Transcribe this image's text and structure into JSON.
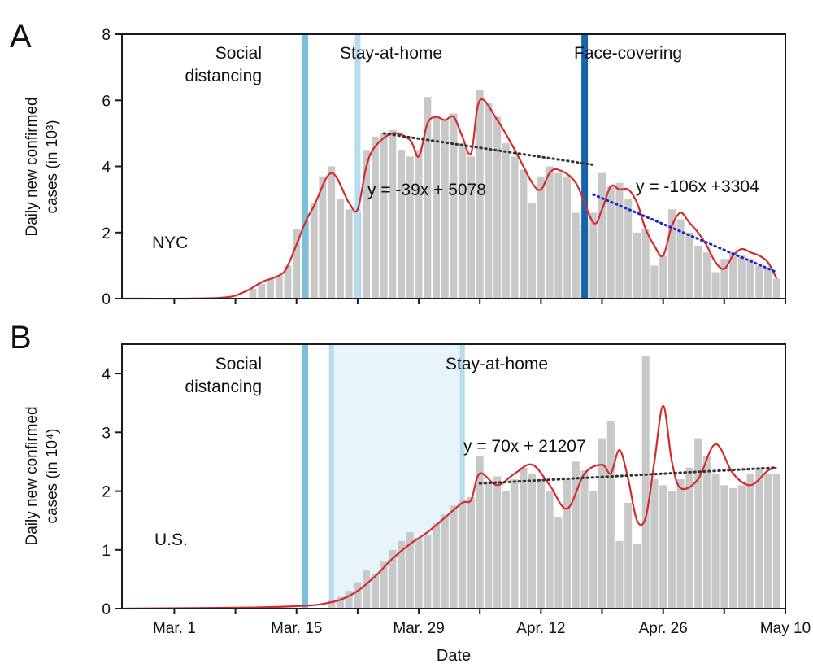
{
  "chart_data": [
    {
      "type": "bar",
      "panel_label": "A",
      "region_label": "NYC",
      "ylabel_line1": "Daily new confirmed",
      "ylabel_line2": "cases (in 10³)",
      "ylim": [
        0,
        8
      ],
      "yticks": [
        0,
        2,
        4,
        6,
        8
      ],
      "x_range": [
        "Feb 24",
        "May 10"
      ],
      "day_start": "Feb 24",
      "categories": [
        "Mar 10",
        "Mar 11",
        "Mar 12",
        "Mar 13",
        "Mar 14",
        "Mar 15",
        "Mar 16",
        "Mar 17",
        "Mar 18",
        "Mar 19",
        "Mar 20",
        "Mar 21",
        "Mar 22",
        "Mar 23",
        "Mar 24",
        "Mar 25",
        "Mar 26",
        "Mar 27",
        "Mar 28",
        "Mar 29",
        "Mar 30",
        "Mar 31",
        "Apr 1",
        "Apr 2",
        "Apr 3",
        "Apr 4",
        "Apr 5",
        "Apr 6",
        "Apr 7",
        "Apr 8",
        "Apr 9",
        "Apr 10",
        "Apr 11",
        "Apr 12",
        "Apr 13",
        "Apr 14",
        "Apr 15",
        "Apr 16",
        "Apr 17",
        "Apr 18",
        "Apr 19",
        "Apr 20",
        "Apr 21",
        "Apr 22",
        "Apr 23",
        "Apr 24",
        "Apr 25",
        "Apr 26",
        "Apr 27",
        "Apr 28",
        "Apr 29",
        "Apr 30",
        "May 1",
        "May 2",
        "May 3",
        "May 4",
        "May 5",
        "May 6",
        "May 7",
        "May 8",
        "May 9"
      ],
      "values": [
        0.3,
        0.45,
        0.6,
        0.7,
        1.0,
        2.1,
        2.4,
        2.9,
        3.7,
        4.0,
        3.0,
        2.7,
        2.6,
        4.5,
        4.9,
        5.0,
        5.1,
        4.5,
        4.3,
        4.5,
        6.1,
        5.5,
        5.4,
        5.6,
        4.7,
        4.3,
        6.3,
        5.9,
        5.5,
        4.7,
        4.3,
        3.9,
        2.9,
        3.7,
        4.0,
        3.8,
        3.7,
        2.6,
        2.2,
        2.6,
        3.8,
        3.4,
        3.5,
        3.0,
        2.0,
        2.1,
        1.0,
        1.3,
        2.7,
        2.4,
        2.0,
        1.6,
        1.4,
        0.8,
        1.2,
        1.4,
        1.3,
        1.2,
        1.0,
        0.9,
        0.6
      ],
      "smoothed": {
        "x": [
          "Feb 24",
          "Mar 6",
          "Mar 9",
          "Mar 11",
          "Mar 13",
          "Mar 14",
          "Mar 16",
          "Mar 17",
          "Mar 19",
          "Mar 21",
          "Mar 22",
          "Mar 23",
          "Mar 24",
          "Mar 26",
          "Mar 28",
          "Mar 29",
          "Mar 30",
          "Mar 31",
          "Apr 1",
          "Apr 2",
          "Apr 3",
          "Apr 4",
          "Apr 5",
          "Apr 7",
          "Apr 9",
          "Apr 11",
          "Apr 12",
          "Apr 13",
          "Apr 14",
          "Apr 16",
          "Apr 18",
          "Apr 19",
          "Apr 20",
          "Apr 21",
          "Apr 22",
          "Apr 23",
          "Apr 24",
          "Apr 25",
          "Apr 26",
          "Apr 27",
          "Apr 28",
          "Apr 29",
          "Apr 30",
          "May 1",
          "May 2",
          "May 3",
          "May 4",
          "May 5",
          "May 6",
          "May 7",
          "May 8",
          "May 9"
        ],
        "y": [
          0,
          0.02,
          0.2,
          0.5,
          0.7,
          1.0,
          2.3,
          2.8,
          3.8,
          2.9,
          2.7,
          4.0,
          4.6,
          5.0,
          4.8,
          4.3,
          5.3,
          5.5,
          5.4,
          5.5,
          4.9,
          4.4,
          6.0,
          5.4,
          4.5,
          3.5,
          3.3,
          3.8,
          3.9,
          3.5,
          2.3,
          2.7,
          3.4,
          3.3,
          3.3,
          2.9,
          2.1,
          1.6,
          1.3,
          2.2,
          2.6,
          2.3,
          2.0,
          1.6,
          1.1,
          0.9,
          1.3,
          1.5,
          1.4,
          1.3,
          1.1,
          0.6
        ]
      },
      "trends": [
        {
          "equation": "y = -39x + 5078",
          "x_range": [
            "Mar 25",
            "Apr 18"
          ],
          "y_range": [
            5.0,
            4.05
          ],
          "color": "#333333"
        },
        {
          "equation": "y = -106x +3304",
          "x_range": [
            "Apr 18",
            "May 9"
          ],
          "y_range": [
            3.15,
            0.8
          ],
          "color": "#2222cc"
        }
      ],
      "interventions": [
        {
          "label_lines": [
            "Social",
            "distancing"
          ],
          "date": "Mar 16",
          "color": "#7bbfdf"
        },
        {
          "label_lines": [
            "Stay-at-home"
          ],
          "date": "Mar 22",
          "color": "#b8dcef"
        },
        {
          "label_lines": [
            "Face-covering"
          ],
          "date": "Apr 17",
          "color": "#1565ad"
        }
      ]
    },
    {
      "type": "bar",
      "panel_label": "B",
      "region_label": "U.S.",
      "ylabel_line1": "Daily new confirmed",
      "ylabel_line2": "cases (in 10⁴)",
      "ylim": [
        0,
        4.5
      ],
      "yticks": [
        0,
        1,
        2,
        3,
        4
      ],
      "x_range": [
        "Feb 24",
        "May 10"
      ],
      "xlabel": "Date",
      "xticks": [
        {
          "date": "Mar 1",
          "label": "Mar. 1"
        },
        {
          "date": "Mar 15",
          "label": "Mar. 15"
        },
        {
          "date": "Mar 29",
          "label": "Mar. 29"
        },
        {
          "date": "Apr 12",
          "label": "Apr. 12"
        },
        {
          "date": "Apr 26",
          "label": "Apr. 26"
        },
        {
          "date": "May 10",
          "label": "May 10"
        }
      ],
      "categories": [
        "Mar 19",
        "Mar 20",
        "Mar 21",
        "Mar 22",
        "Mar 23",
        "Mar 24",
        "Mar 25",
        "Mar 26",
        "Mar 27",
        "Mar 28",
        "Mar 29",
        "Mar 30",
        "Mar 31",
        "Apr 1",
        "Apr 2",
        "Apr 3",
        "Apr 4",
        "Apr 5",
        "Apr 6",
        "Apr 7",
        "Apr 8",
        "Apr 9",
        "Apr 10",
        "Apr 11",
        "Apr 12",
        "Apr 13",
        "Apr 14",
        "Apr 15",
        "Apr 16",
        "Apr 17",
        "Apr 18",
        "Apr 19",
        "Apr 20",
        "Apr 21",
        "Apr 22",
        "Apr 23",
        "Apr 24",
        "Apr 25",
        "Apr 26",
        "Apr 27",
        "Apr 28",
        "Apr 29",
        "Apr 30",
        "May 1",
        "May 2",
        "May 3",
        "May 4",
        "May 5",
        "May 6",
        "May 7",
        "May 8",
        "May 9"
      ],
      "values": [
        0.15,
        0.2,
        0.3,
        0.45,
        0.65,
        0.6,
        0.8,
        1.0,
        1.15,
        1.3,
        1.2,
        1.25,
        1.45,
        1.6,
        1.75,
        1.85,
        1.9,
        2.6,
        2.15,
        2.25,
        2.0,
        2.2,
        2.4,
        2.3,
        2.2,
        2.0,
        1.55,
        2.2,
        2.5,
        2.35,
        2.0,
        2.9,
        3.2,
        1.15,
        1.8,
        1.1,
        4.3,
        2.2,
        2.1,
        2.0,
        2.2,
        2.4,
        2.9,
        2.6,
        2.3,
        2.1,
        2.05,
        2.1,
        2.3,
        2.4,
        2.3,
        2.3
      ],
      "smoothed": {
        "x": [
          "Feb 24",
          "Mar 10",
          "Mar 16",
          "Mar 18",
          "Mar 20",
          "Mar 22",
          "Mar 24",
          "Mar 26",
          "Mar 28",
          "Mar 30",
          "Apr 1",
          "Apr 3",
          "Apr 4",
          "Apr 5",
          "Apr 7",
          "Apr 9",
          "Apr 11",
          "Apr 13",
          "Apr 15",
          "Apr 17",
          "Apr 19",
          "Apr 20",
          "Apr 21",
          "Apr 22",
          "Apr 23",
          "Apr 24",
          "Apr 25",
          "Apr 26",
          "Apr 27",
          "Apr 28",
          "Apr 30",
          "May 2",
          "May 4",
          "May 6",
          "May 8",
          "May 9"
        ],
        "y": [
          0,
          0.02,
          0.05,
          0.08,
          0.15,
          0.3,
          0.55,
          0.85,
          1.1,
          1.3,
          1.55,
          1.8,
          1.85,
          2.3,
          2.1,
          2.3,
          2.45,
          2.1,
          1.7,
          2.3,
          2.45,
          2.3,
          2.7,
          2.2,
          1.5,
          1.55,
          2.5,
          3.45,
          2.5,
          2.05,
          2.2,
          2.8,
          2.3,
          2.1,
          2.35,
          2.4
        ]
      },
      "trends": [
        {
          "equation": "y = 70x + 21207",
          "x_range": [
            "Apr 5",
            "May 9"
          ],
          "y_range": [
            2.13,
            2.4
          ],
          "color": "#333333"
        }
      ],
      "interventions": [
        {
          "label_lines": [
            "Social",
            "distancing"
          ],
          "date": "Mar 16",
          "color": "#7bbfdf"
        },
        {
          "label_lines": [
            "Stay-at-home"
          ],
          "date_range": [
            "Mar 19",
            "Apr 3"
          ],
          "color": "#b8dcef",
          "fill": "#e3f2fb"
        }
      ]
    }
  ]
}
